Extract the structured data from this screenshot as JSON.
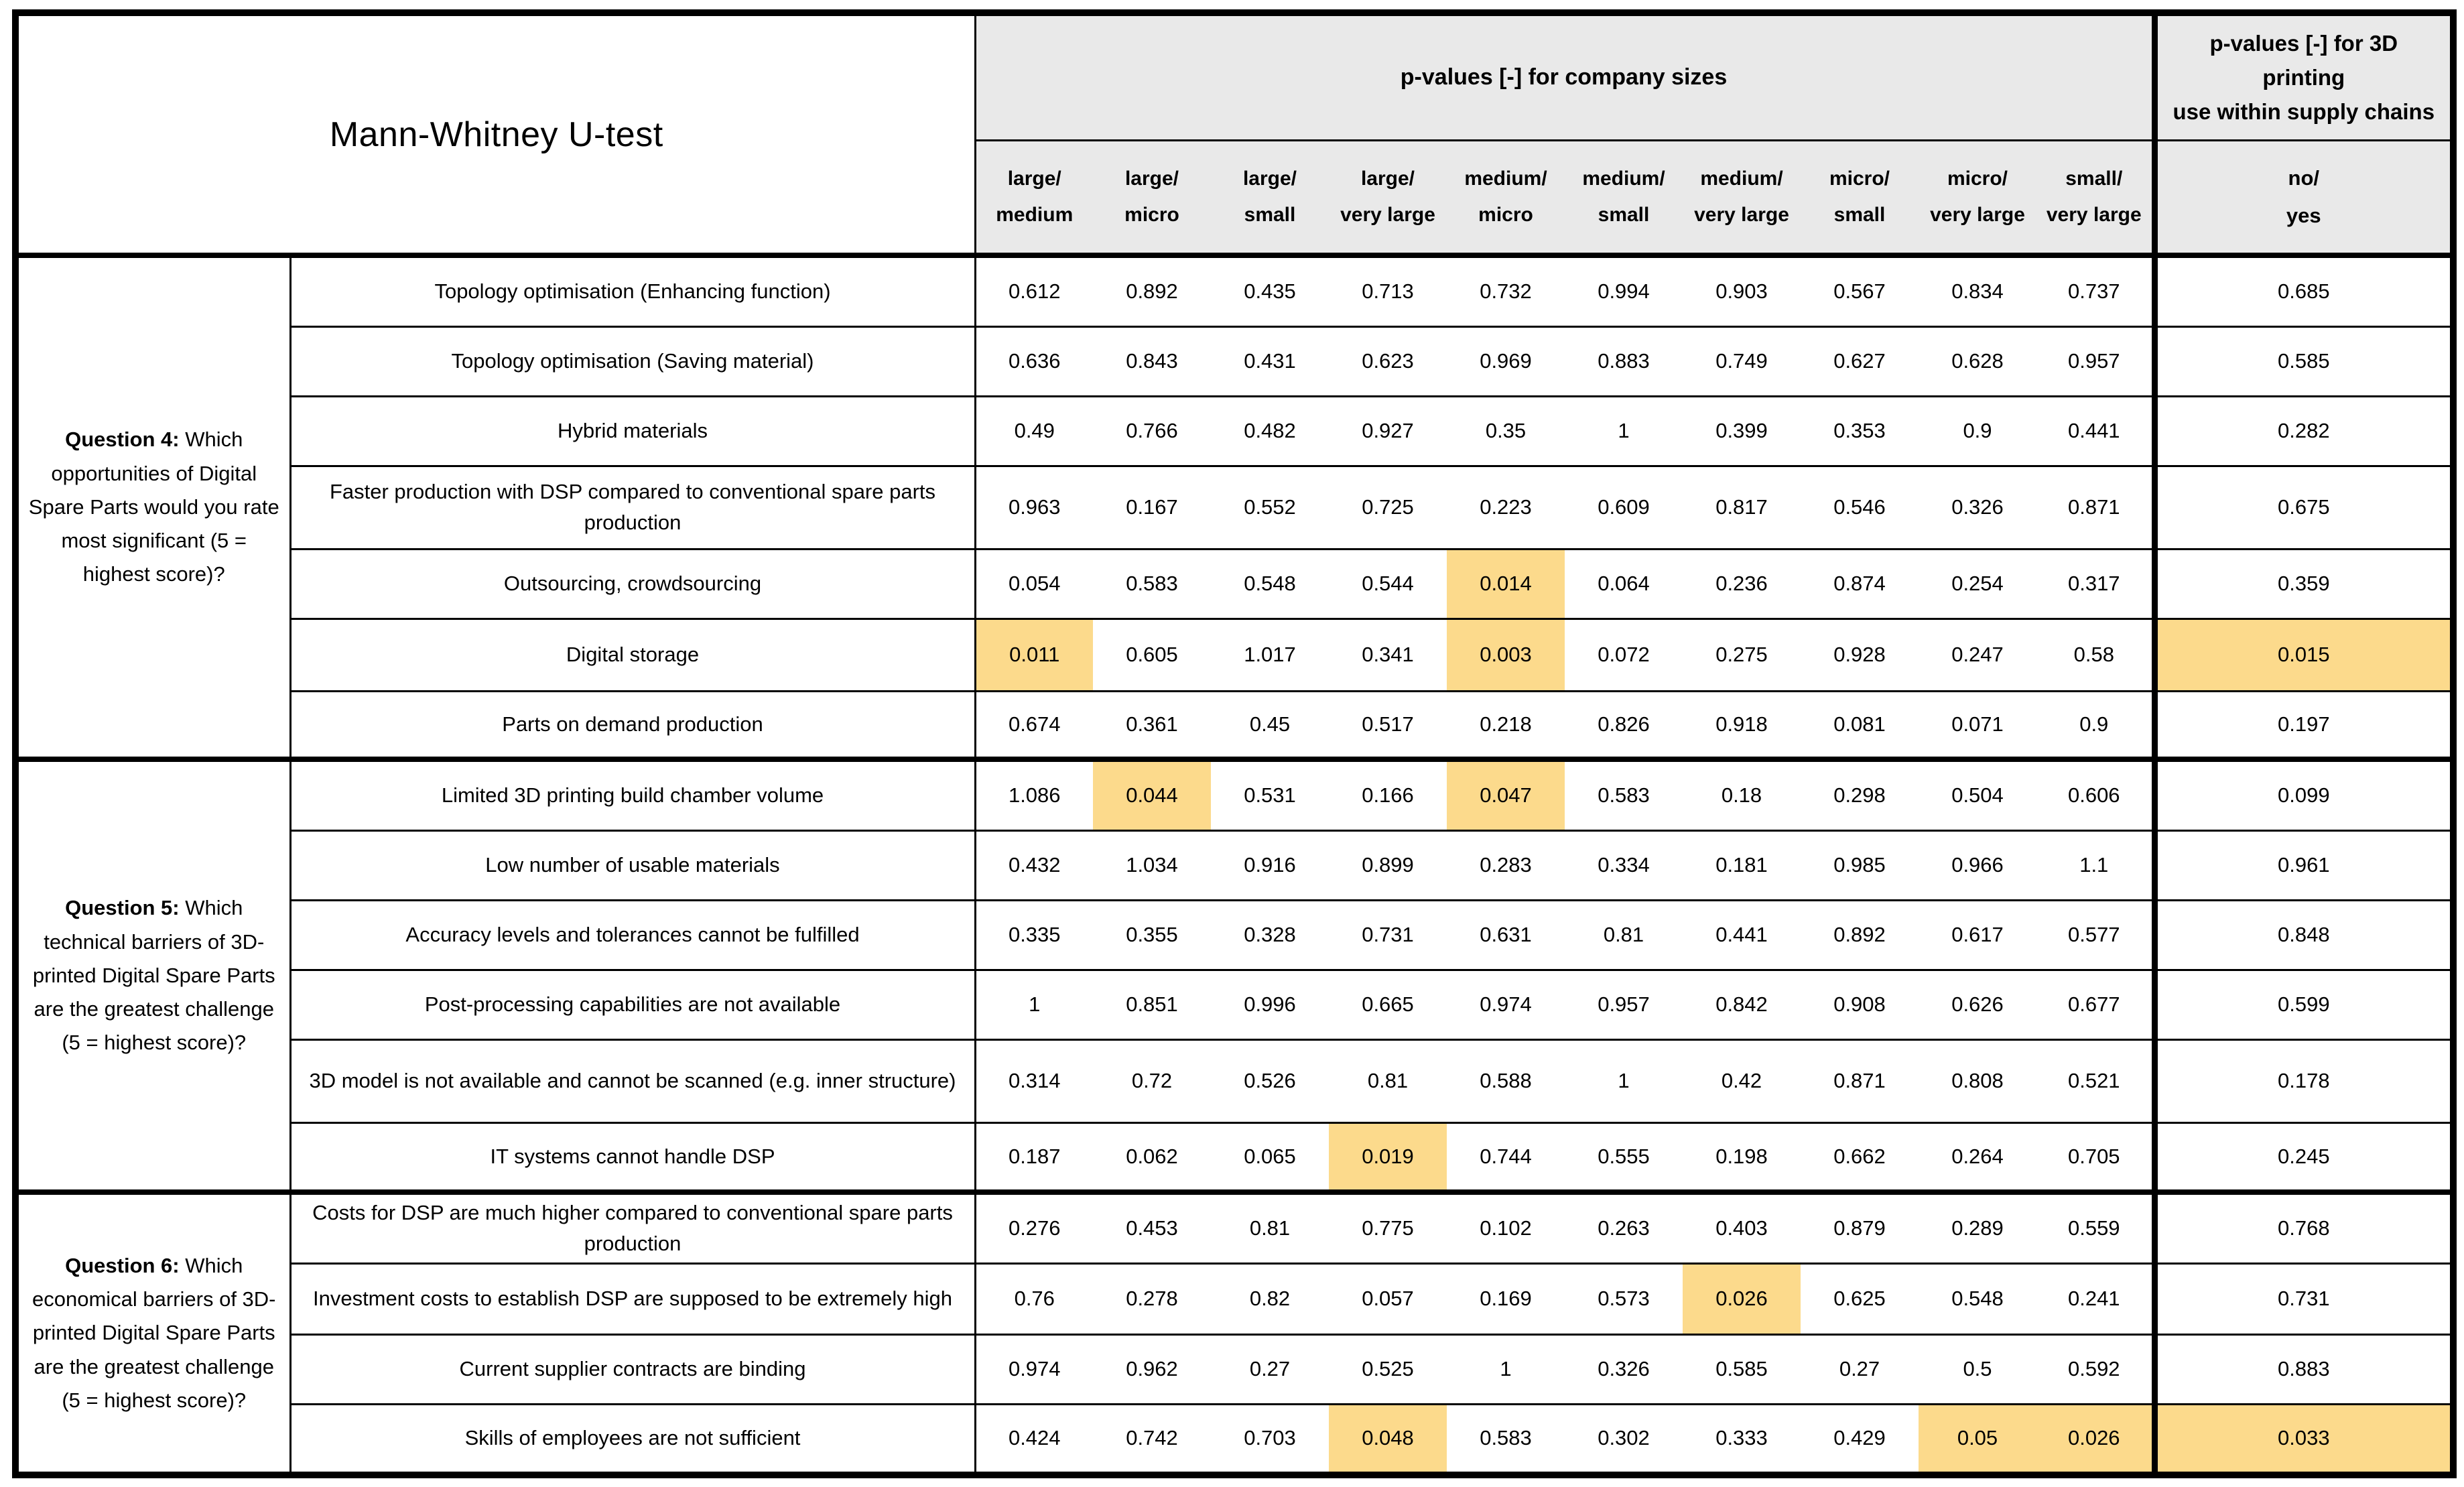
{
  "table": {
    "title": "Mann-Whitney U-test",
    "header_company": "p-values [-] for company sizes",
    "header_3d": "p-values [-] for 3D\nprinting\nuse within supply chains",
    "columns": [
      {
        "line1": "large/",
        "line2": "medium"
      },
      {
        "line1": "large/",
        "line2": "micro"
      },
      {
        "line1": "large/",
        "line2": "small"
      },
      {
        "line1": "large/",
        "line2": "very large"
      },
      {
        "line1": "medium/",
        "line2": "micro"
      },
      {
        "line1": "medium/",
        "line2": "small"
      },
      {
        "line1": "medium/",
        "line2": "very large"
      },
      {
        "line1": "micro/",
        "line2": "small"
      },
      {
        "line1": "micro/",
        "line2": "very large"
      },
      {
        "line1": "small/",
        "line2": "very large"
      }
    ],
    "last_column": {
      "line1": "no/",
      "line2": "yes"
    },
    "colors": {
      "header_bg": "#e9e9e9",
      "highlight": "#fcda8c",
      "border": "#000000"
    },
    "sections": [
      {
        "question_label": "Question 4:",
        "question_text": " Which opportunities of Digital Spare Parts would you rate most significant (5 = highest score)?",
        "rows": [
          {
            "label": "Topology optimisation (Enhancing function)",
            "values": [
              "0.612",
              "0.892",
              "0.435",
              "0.713",
              "0.732",
              "0.994",
              "0.903",
              "0.567",
              "0.834",
              "0.737",
              "0.685"
            ],
            "highlight": []
          },
          {
            "label": "Topology optimisation (Saving material)",
            "values": [
              "0.636",
              "0.843",
              "0.431",
              "0.623",
              "0.969",
              "0.883",
              "0.749",
              "0.627",
              "0.628",
              "0.957",
              "0.585"
            ],
            "highlight": []
          },
          {
            "label": "Hybrid materials",
            "values": [
              "0.49",
              "0.766",
              "0.482",
              "0.927",
              "0.35",
              "1",
              "0.399",
              "0.353",
              "0.9",
              "0.441",
              "0.282"
            ],
            "highlight": []
          },
          {
            "label": "Faster production with DSP compared to conventional spare parts production",
            "values": [
              "0.963",
              "0.167",
              "0.552",
              "0.725",
              "0.223",
              "0.609",
              "0.817",
              "0.546",
              "0.326",
              "0.871",
              "0.675"
            ],
            "highlight": []
          },
          {
            "label": "Outsourcing, crowdsourcing",
            "values": [
              "0.054",
              "0.583",
              "0.548",
              "0.544",
              "0.014",
              "0.064",
              "0.236",
              "0.874",
              "0.254",
              "0.317",
              "0.359"
            ],
            "highlight": [
              4
            ]
          },
          {
            "label": "Digital storage",
            "values": [
              "0.011",
              "0.605",
              "1.017",
              "0.341",
              "0.003",
              "0.072",
              "0.275",
              "0.928",
              "0.247",
              "0.58",
              "0.015"
            ],
            "highlight": [
              0,
              4,
              10
            ]
          },
          {
            "label": "Parts on demand production",
            "values": [
              "0.674",
              "0.361",
              "0.45",
              "0.517",
              "0.218",
              "0.826",
              "0.918",
              "0.081",
              "0.071",
              "0.9",
              "0.197"
            ],
            "highlight": []
          }
        ]
      },
      {
        "question_label": "Question 5:",
        "question_text": " Which technical barriers of 3D-printed Digital Spare Parts are the greatest challenge (5 = highest score)?",
        "rows": [
          {
            "label": "Limited 3D printing build chamber volume",
            "values": [
              "1.086",
              "0.044",
              "0.531",
              "0.166",
              "0.047",
              "0.583",
              "0.18",
              "0.298",
              "0.504",
              "0.606",
              "0.099"
            ],
            "highlight": [
              1,
              4
            ]
          },
          {
            "label": "Low number of usable materials",
            "values": [
              "0.432",
              "1.034",
              "0.916",
              "0.899",
              "0.283",
              "0.334",
              "0.181",
              "0.985",
              "0.966",
              "1.1",
              "0.961"
            ],
            "highlight": []
          },
          {
            "label": "Accuracy levels and tolerances cannot be fulfilled",
            "values": [
              "0.335",
              "0.355",
              "0.328",
              "0.731",
              "0.631",
              "0.81",
              "0.441",
              "0.892",
              "0.617",
              "0.577",
              "0.848"
            ],
            "highlight": []
          },
          {
            "label": "Post-processing capabilities are not available",
            "values": [
              "1",
              "0.851",
              "0.996",
              "0.665",
              "0.974",
              "0.957",
              "0.842",
              "0.908",
              "0.626",
              "0.677",
              "0.599"
            ],
            "highlight": []
          },
          {
            "label": "3D model is not available and cannot be scanned (e.g. inner structure)",
            "values": [
              "0.314",
              "0.72",
              "0.526",
              "0.81",
              "0.588",
              "1",
              "0.42",
              "0.871",
              "0.808",
              "0.521",
              "0.178"
            ],
            "highlight": []
          },
          {
            "label": "IT systems cannot handle DSP",
            "values": [
              "0.187",
              "0.062",
              "0.065",
              "0.019",
              "0.744",
              "0.555",
              "0.198",
              "0.662",
              "0.264",
              "0.705",
              "0.245"
            ],
            "highlight": [
              3
            ]
          }
        ]
      },
      {
        "question_label": "Question 6:",
        "question_text": " Which economical barriers of 3D-printed Digital Spare Parts are the greatest challenge (5 = highest score)?",
        "rows": [
          {
            "label": "Costs for DSP are much higher compared to conventional spare parts production",
            "values": [
              "0.276",
              "0.453",
              "0.81",
              "0.775",
              "0.102",
              "0.263",
              "0.403",
              "0.879",
              "0.289",
              "0.559",
              "0.768"
            ],
            "highlight": []
          },
          {
            "label": "Investment costs to establish DSP are supposed to be extremely high",
            "values": [
              "0.76",
              "0.278",
              "0.82",
              "0.057",
              "0.169",
              "0.573",
              "0.026",
              "0.625",
              "0.548",
              "0.241",
              "0.731"
            ],
            "highlight": [
              6
            ]
          },
          {
            "label": "Current supplier contracts are binding",
            "values": [
              "0.974",
              "0.962",
              "0.27",
              "0.525",
              "1",
              "0.326",
              "0.585",
              "0.27",
              "0.5",
              "0.592",
              "0.883"
            ],
            "highlight": []
          },
          {
            "label": "Skills of employees are not sufficient",
            "values": [
              "0.424",
              "0.742",
              "0.703",
              "0.048",
              "0.583",
              "0.302",
              "0.333",
              "0.429",
              "0.05",
              "0.026",
              "0.033"
            ],
            "highlight": [
              3,
              8,
              9,
              10
            ]
          }
        ]
      }
    ]
  }
}
